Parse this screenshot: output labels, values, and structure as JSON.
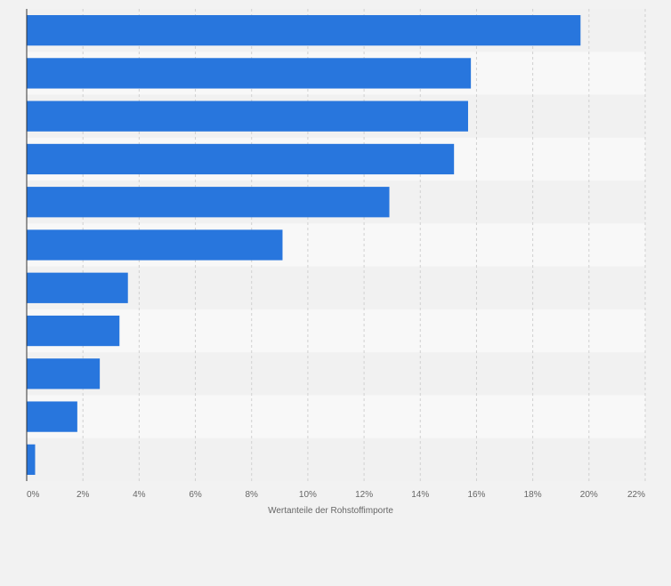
{
  "chart_data": {
    "type": "bar",
    "orientation": "horizontal",
    "title": "",
    "xlabel": "Wertanteile der Rohstoffimporte",
    "ylabel": "",
    "categories": [
      "",
      "",
      "",
      "",
      "",
      "",
      "",
      "",
      "",
      "",
      ""
    ],
    "values": [
      19.7,
      15.8,
      15.7,
      15.2,
      12.9,
      9.1,
      3.6,
      3.3,
      2.6,
      1.8,
      0.3
    ],
    "xlim": [
      0,
      22
    ],
    "xticks": [
      0,
      2,
      4,
      6,
      8,
      10,
      12,
      14,
      16,
      18,
      20,
      22
    ],
    "xtick_labels": [
      "0%",
      "2%",
      "4%",
      "6%",
      "8%",
      "10%",
      "12%",
      "14%",
      "16%",
      "18%",
      "20%",
      "22%"
    ],
    "grid": true,
    "legend": "none",
    "colors": {
      "bar": "#2876dd",
      "background": "#f2f2f2",
      "band_dark": "#f1f1f1",
      "band_light": "#f8f8f8",
      "grid": "#d0d0d0",
      "axis": "#333333",
      "text": "#666666"
    }
  }
}
